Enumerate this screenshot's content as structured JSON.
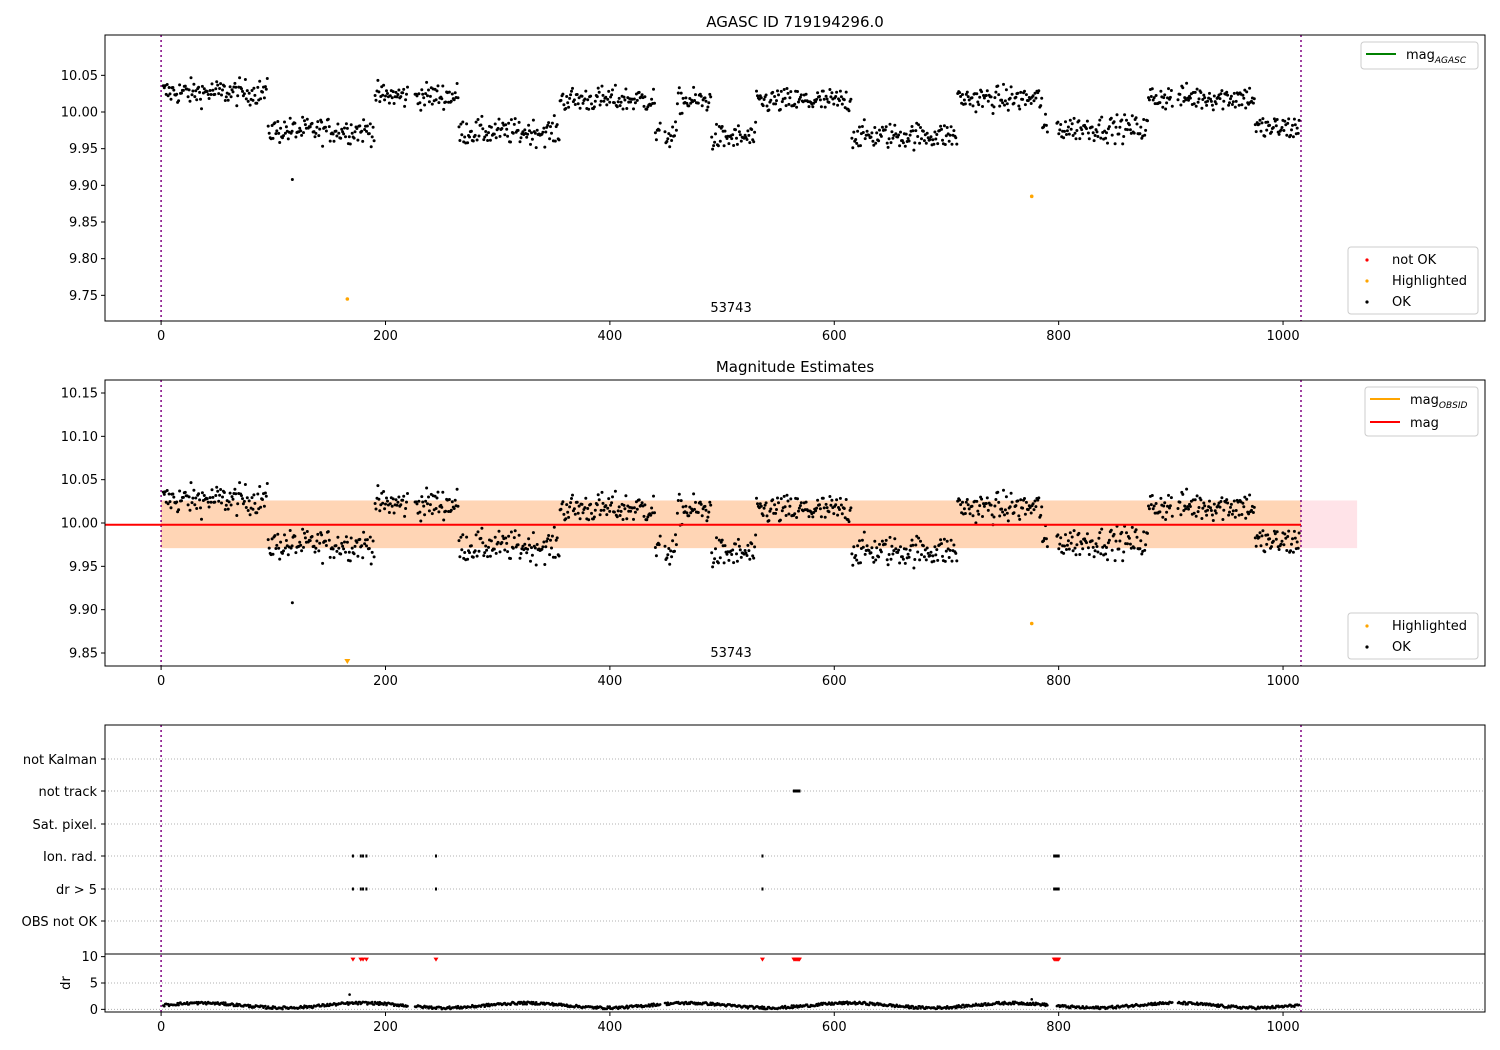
{
  "chart_data": [
    {
      "type": "scatter",
      "title": "AGASC ID 719194296.0",
      "xlim": [
        -50,
        1180
      ],
      "ylim": [
        9.715,
        10.105
      ],
      "x_ticks": [
        0,
        200,
        400,
        600,
        800,
        1000
      ],
      "y_ticks": [
        9.75,
        9.8,
        9.85,
        9.9,
        9.95,
        10.0,
        10.05
      ],
      "y_tick_labels": [
        "9.75",
        "9.80",
        "9.85",
        "9.90",
        "9.95",
        "10.00",
        "10.05"
      ],
      "grid": false,
      "obs_markers": [
        0,
        1016
      ],
      "obs_label": "53743",
      "obs_label_x": 508,
      "legend_lines": [
        {
          "label": "mag",
          "sub": "AGASC",
          "color": "#008000"
        }
      ],
      "legend_points": [
        {
          "label": "not OK",
          "color": "#ff0000"
        },
        {
          "label": "Highlighted",
          "color": "#ffa500"
        },
        {
          "label": "OK",
          "color": "#000000"
        }
      ],
      "highlighted_points": [
        [
          166,
          9.745
        ],
        [
          776,
          9.885
        ]
      ],
      "outlier_points": [
        [
          117,
          9.908
        ]
      ]
    },
    {
      "type": "scatter",
      "title": "Magnitude Estimates",
      "xlim": [
        -50,
        1180
      ],
      "ylim": [
        9.835,
        10.165
      ],
      "x_ticks": [
        0,
        200,
        400,
        600,
        800,
        1000
      ],
      "y_ticks": [
        9.85,
        9.9,
        9.95,
        10.0,
        10.05,
        10.1,
        10.15
      ],
      "y_tick_labels": [
        "9.85",
        "9.90",
        "9.95",
        "10.00",
        "10.05",
        "10.10",
        "10.15"
      ],
      "grid": false,
      "obs_markers": [
        0,
        1016
      ],
      "obs_label": "53743",
      "obs_label_x": 508,
      "mag_line": 9.998,
      "band_range": [
        9.971,
        10.026
      ],
      "band_x": [
        0,
        1066
      ],
      "legend_lines": [
        {
          "label": "mag",
          "sub": "OBSID",
          "color": "#ffa500"
        },
        {
          "label": "mag",
          "sub": "",
          "color": "#ff0000"
        }
      ],
      "legend_points": [
        {
          "label": "Highlighted",
          "color": "#ffa500"
        },
        {
          "label": "OK",
          "color": "#000000"
        }
      ],
      "highlighted_points": [
        [
          776,
          9.884
        ]
      ],
      "clipped_point_x": 166,
      "outlier_points": [
        [
          117,
          9.908
        ]
      ]
    },
    {
      "type": "scatter",
      "title": "",
      "xlim": [
        -50,
        1180
      ],
      "flag_rows": [
        "not Kalman",
        "not track",
        "Sat. pixel.",
        "Ion. rad.",
        "dr > 5",
        "OBS not OK"
      ],
      "flag_points": {
        "not track": [
          564,
          565,
          566,
          567,
          568,
          569
        ],
        "Ion. rad.": [
          171,
          178,
          180,
          183,
          245,
          536,
          796,
          797,
          798,
          799,
          800
        ],
        "dr > 5": [
          171,
          178,
          180,
          183,
          245,
          536,
          796,
          797,
          798,
          799,
          800
        ]
      },
      "obs_markers": [
        0,
        1016
      ]
    },
    {
      "type": "scatter",
      "title": "",
      "xlim": [
        -50,
        1180
      ],
      "ylim": [
        -0.5,
        10.5
      ],
      "x_ticks": [
        0,
        200,
        400,
        600,
        800,
        1000
      ],
      "y_ticks": [
        0,
        5,
        10
      ],
      "y_tick_labels": [
        "0",
        "5",
        "10"
      ],
      "ylabel": "dr",
      "clipped_dr_x": [
        171,
        178,
        180,
        183,
        245,
        536,
        564,
        565,
        566,
        567,
        568,
        569,
        796,
        797,
        798,
        799,
        800
      ],
      "outlier_points": [
        [
          168,
          2.8
        ],
        [
          776,
          1.9
        ]
      ],
      "obs_markers": [
        0,
        1016
      ]
    }
  ]
}
